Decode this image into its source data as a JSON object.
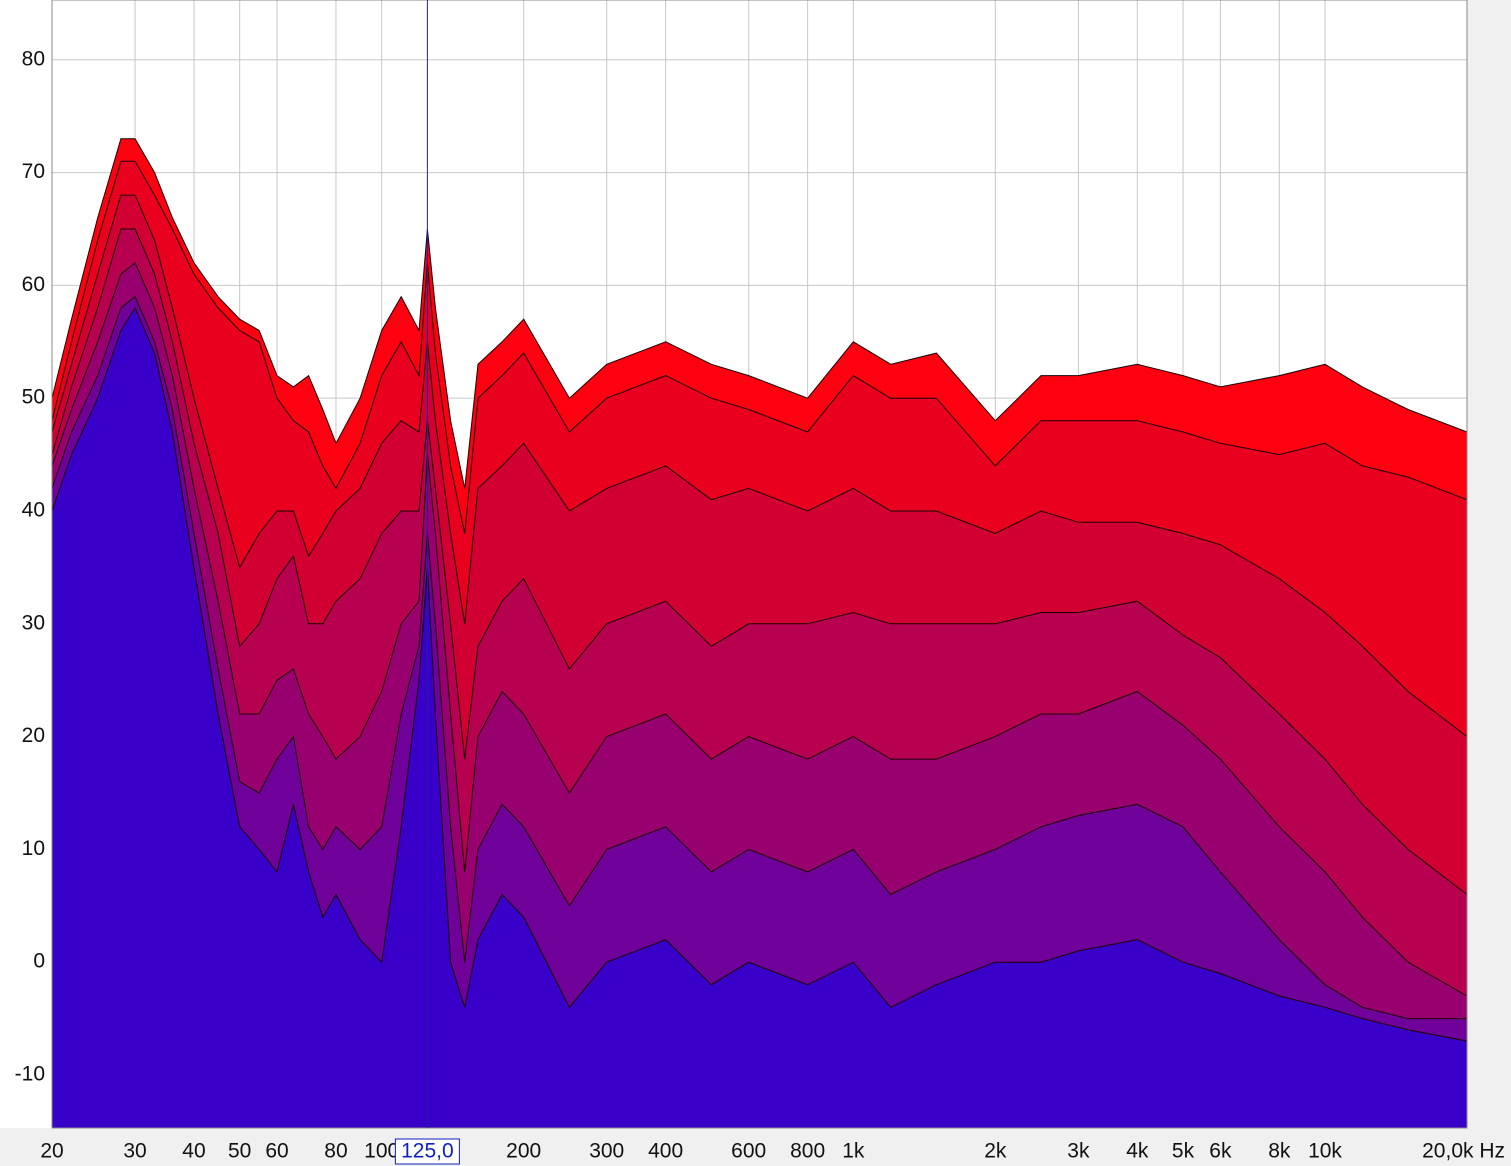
{
  "chart_data": {
    "type": "area",
    "x": [
      20,
      22,
      25,
      28,
      30,
      33,
      36,
      40,
      45,
      50,
      55,
      60,
      65,
      70,
      75,
      80,
      90,
      100,
      110,
      120,
      125,
      130,
      140,
      150,
      160,
      180,
      200,
      250,
      300,
      400,
      500,
      600,
      800,
      1000,
      1200,
      1500,
      2000,
      2500,
      3000,
      4000,
      5000,
      6000,
      8000,
      10000,
      12000,
      15000,
      20000
    ],
    "series": [
      {
        "color": "#ff0010",
        "values": [
          50,
          57,
          66,
          73,
          73,
          70,
          66,
          62,
          59,
          57,
          56,
          52,
          51,
          52,
          49,
          46,
          50,
          56,
          59,
          56,
          65,
          58,
          48,
          42,
          53,
          55,
          57,
          50,
          53,
          55,
          53,
          52,
          50,
          55,
          53,
          54,
          48,
          52,
          52,
          53,
          52,
          51,
          52,
          53,
          51,
          49,
          47
        ]
      },
      {
        "color": "#e8001e",
        "values": [
          48,
          55,
          64,
          71,
          71,
          68,
          65,
          61,
          58,
          56,
          55,
          50,
          48,
          47,
          44,
          42,
          46,
          52,
          55,
          52,
          62,
          54,
          44,
          38,
          50,
          52,
          54,
          47,
          50,
          52,
          50,
          49,
          47,
          52,
          50,
          50,
          44,
          48,
          48,
          48,
          47,
          46,
          45,
          46,
          44,
          43,
          41
        ]
      },
      {
        "color": "#d20032",
        "values": [
          47,
          53,
          61,
          68,
          68,
          64,
          58,
          50,
          42,
          35,
          38,
          40,
          40,
          36,
          38,
          40,
          42,
          46,
          48,
          47,
          55,
          48,
          38,
          30,
          42,
          44,
          46,
          40,
          42,
          44,
          41,
          42,
          40,
          42,
          40,
          40,
          38,
          40,
          39,
          39,
          38,
          37,
          34,
          31,
          28,
          24,
          20
        ]
      },
      {
        "color": "#b80050",
        "values": [
          45,
          51,
          58,
          65,
          65,
          61,
          55,
          46,
          38,
          28,
          30,
          34,
          36,
          30,
          30,
          32,
          34,
          38,
          40,
          40,
          48,
          42,
          30,
          18,
          28,
          32,
          34,
          26,
          30,
          32,
          28,
          30,
          30,
          31,
          30,
          30,
          30,
          31,
          31,
          32,
          29,
          27,
          22,
          18,
          14,
          10,
          6
        ]
      },
      {
        "color": "#980070",
        "values": [
          44,
          49,
          55,
          61,
          62,
          58,
          52,
          42,
          32,
          22,
          22,
          25,
          26,
          22,
          20,
          18,
          20,
          24,
          30,
          32,
          45,
          38,
          22,
          8,
          20,
          24,
          22,
          15,
          20,
          22,
          18,
          20,
          18,
          20,
          18,
          18,
          20,
          22,
          22,
          24,
          21,
          18,
          12,
          8,
          4,
          0,
          -3
        ]
      },
      {
        "color": "#70009a",
        "values": [
          42,
          47,
          52,
          58,
          59,
          55,
          49,
          38,
          26,
          16,
          15,
          18,
          20,
          12,
          10,
          12,
          10,
          12,
          22,
          28,
          38,
          30,
          12,
          0,
          10,
          14,
          12,
          5,
          10,
          12,
          8,
          10,
          8,
          10,
          6,
          8,
          10,
          12,
          13,
          14,
          12,
          8,
          2,
          -2,
          -4,
          -5,
          -5
        ]
      },
      {
        "color": "#3800c8",
        "values": [
          40,
          45,
          50,
          56,
          58,
          54,
          47,
          35,
          22,
          12,
          10,
          8,
          14,
          8,
          4,
          6,
          2,
          0,
          12,
          25,
          35,
          22,
          0,
          -4,
          2,
          6,
          4,
          -4,
          0,
          2,
          -2,
          0,
          -2,
          0,
          -4,
          -2,
          0,
          0,
          1,
          2,
          0,
          -1,
          -3,
          -4,
          -5,
          -6,
          -7
        ]
      }
    ],
    "xlim": [
      20,
      20000
    ],
    "xlog": true,
    "ylim": [
      -14.7,
      85.3
    ],
    "yticks": [
      -10,
      0,
      10,
      20,
      30,
      40,
      50,
      60,
      70,
      80
    ],
    "xticks": [
      20,
      30,
      40,
      50,
      60,
      80,
      100,
      200,
      300,
      400,
      600,
      800,
      {
        "value": 1000,
        "label": "1k"
      },
      {
        "value": 2000,
        "label": "2k"
      },
      {
        "value": 3000,
        "label": "3k"
      },
      {
        "value": 4000,
        "label": "4k"
      },
      {
        "value": 5000,
        "label": "5k"
      },
      {
        "value": 6000,
        "label": "6k"
      },
      {
        "value": 8000,
        "label": "8k"
      },
      {
        "value": 10000,
        "label": "10k"
      },
      {
        "value": 20000,
        "label": "20,0k Hz"
      }
    ],
    "cursor": {
      "value": 125,
      "label": "125,0"
    },
    "grid": true
  }
}
